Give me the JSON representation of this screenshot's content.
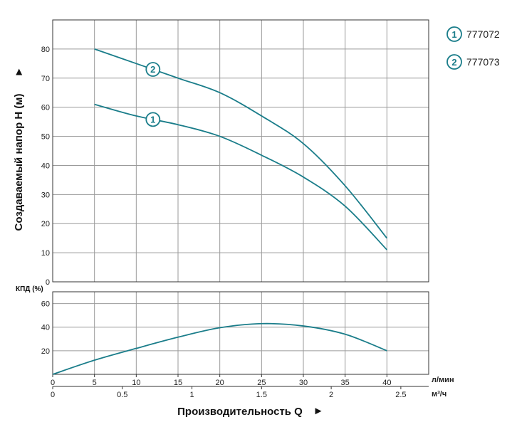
{
  "chart_data": [
    {
      "type": "line",
      "ylabel": "Создаваемый напор H (м)",
      "ylim": [
        0,
        90
      ],
      "yticks": [
        0,
        10,
        20,
        30,
        40,
        50,
        60,
        70,
        80
      ],
      "xlim": [
        0,
        45
      ],
      "grid": true,
      "legend_position": "top-right",
      "series": [
        {
          "name": "777072",
          "marker": "1",
          "color": "#1a7d8a",
          "x": [
            5,
            10,
            15,
            20,
            25,
            30,
            35,
            40
          ],
          "y": [
            61,
            57,
            54,
            50,
            43.5,
            36,
            26,
            11
          ]
        },
        {
          "name": "777073",
          "marker": "2",
          "color": "#1a7d8a",
          "x": [
            5,
            10,
            15,
            20,
            25,
            30,
            35,
            40
          ],
          "y": [
            80,
            75,
            70,
            65,
            57,
            47.5,
            33,
            15
          ]
        }
      ]
    },
    {
      "type": "line",
      "ylabel": "КПД (%)",
      "ylim": [
        0,
        70
      ],
      "yticks": [
        20,
        40,
        60
      ],
      "xlabel": "Производительность Q",
      "x_primary": {
        "unit": "л/мин",
        "ticks": [
          0,
          5,
          10,
          15,
          20,
          25,
          30,
          35,
          40
        ],
        "lim": [
          0,
          45
        ]
      },
      "x_secondary": {
        "unit": "м³/ч",
        "ticks": [
          0,
          0.5,
          1,
          1.5,
          2,
          2.5
        ],
        "tick_labels": [
          "0",
          "0.5",
          "1",
          "1.5",
          "2",
          "2.5"
        ]
      },
      "grid": true,
      "series": [
        {
          "color": "#1a7d8a",
          "x": [
            0,
            5,
            10,
            15,
            20,
            25,
            30,
            35,
            40
          ],
          "y": [
            0,
            12,
            22,
            31.5,
            39.5,
            43,
            41,
            34,
            20
          ]
        }
      ]
    }
  ],
  "arrow_glyph": "►"
}
